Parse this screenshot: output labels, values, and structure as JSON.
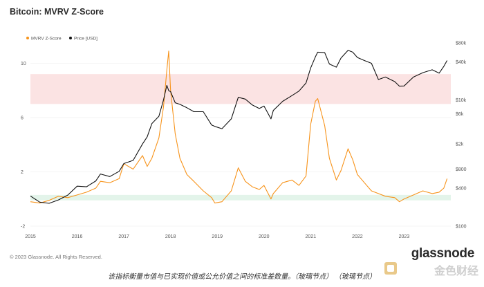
{
  "title": "Bitcoin: MVRV Z-Score",
  "copyright": "© 2023 Glassnode. All Rights Reserved.",
  "brand": "glassnode",
  "caption": "该指标衡量市值与已实现价值或公允价值之间的标准差数量。（玻璃节点） （玻璃节点）",
  "watermark_text": "金色财经",
  "colors": {
    "zscore": "#f7931a",
    "price": "#111111",
    "red_band": "#fbe3e3",
    "green_band": "#e3f4ea"
  },
  "chart_data": {
    "type": "line",
    "title": "Bitcoin: MVRV Z-Score",
    "legend": [
      "MVRV Z-Score",
      "Price [USD]"
    ],
    "legend_position": "top-left",
    "x_ticks": [
      "2015",
      "2016",
      "2017",
      "2018",
      "2019",
      "2020",
      "2021",
      "2022",
      "2023"
    ],
    "y_left_ticks": [
      "10",
      "6",
      "2",
      "-2"
    ],
    "y_left_range": [
      -2,
      11.5
    ],
    "y_right_ticks": [
      "$80k",
      "$40k",
      "$10k",
      "$6k",
      "$2k",
      "$800",
      "$400",
      "$100"
    ],
    "y_right_scale": "log",
    "y_right_range": [
      100,
      80000
    ],
    "bands": [
      {
        "name": "overvalued",
        "y_from": 7,
        "y_to": 9.2
      },
      {
        "name": "undervalued",
        "y_from": -0.1,
        "y_to": 0.3
      }
    ],
    "series": [
      {
        "name": "MVRV Z-Score",
        "axis": "left",
        "x": [
          2015.0,
          2015.2,
          2015.4,
          2015.6,
          2015.8,
          2016.0,
          2016.2,
          2016.4,
          2016.5,
          2016.7,
          2016.9,
          2017.0,
          2017.2,
          2017.4,
          2017.5,
          2017.6,
          2017.75,
          2017.85,
          2017.92,
          2017.96,
          2018.0,
          2018.1,
          2018.2,
          2018.35,
          2018.5,
          2018.7,
          2018.88,
          2018.95,
          2019.1,
          2019.3,
          2019.45,
          2019.6,
          2019.75,
          2019.9,
          2020.0,
          2020.15,
          2020.2,
          2020.4,
          2020.6,
          2020.75,
          2020.9,
          2021.0,
          2021.1,
          2021.15,
          2021.3,
          2021.4,
          2021.55,
          2021.65,
          2021.8,
          2021.9,
          2022.0,
          2022.15,
          2022.3,
          2022.45,
          2022.6,
          2022.8,
          2022.9,
          2023.0,
          2023.2,
          2023.4,
          2023.6,
          2023.75,
          2023.85,
          2023.92
        ],
        "y": [
          -0.2,
          -0.3,
          -0.1,
          0.2,
          0.1,
          0.3,
          0.5,
          0.8,
          1.3,
          1.2,
          1.5,
          2.6,
          2.2,
          3.2,
          2.4,
          3.0,
          4.5,
          6.8,
          9.5,
          10.9,
          8.0,
          4.8,
          3.0,
          1.8,
          1.3,
          0.6,
          0.1,
          -0.3,
          -0.2,
          0.6,
          2.3,
          1.3,
          0.9,
          0.7,
          1.0,
          0.0,
          0.4,
          1.2,
          1.4,
          1.0,
          1.7,
          5.5,
          7.2,
          7.4,
          5.4,
          3.0,
          1.4,
          2.1,
          3.7,
          2.9,
          1.8,
          1.2,
          0.6,
          0.4,
          0.2,
          0.1,
          -0.2,
          0.0,
          0.3,
          0.6,
          0.4,
          0.5,
          0.8,
          1.5
        ]
      },
      {
        "name": "Price [USD]",
        "axis": "right",
        "x": [
          2015.0,
          2015.2,
          2015.4,
          2015.6,
          2015.8,
          2016.0,
          2016.2,
          2016.4,
          2016.5,
          2016.7,
          2016.9,
          2017.0,
          2017.2,
          2017.4,
          2017.5,
          2017.6,
          2017.75,
          2017.85,
          2017.92,
          2017.96,
          2018.0,
          2018.1,
          2018.2,
          2018.35,
          2018.5,
          2018.7,
          2018.88,
          2018.95,
          2019.1,
          2019.3,
          2019.45,
          2019.6,
          2019.75,
          2019.9,
          2020.0,
          2020.15,
          2020.2,
          2020.4,
          2020.6,
          2020.75,
          2020.9,
          2021.0,
          2021.1,
          2021.15,
          2021.3,
          2021.4,
          2021.55,
          2021.65,
          2021.8,
          2021.9,
          2022.0,
          2022.15,
          2022.3,
          2022.45,
          2022.6,
          2022.8,
          2022.9,
          2023.0,
          2023.2,
          2023.4,
          2023.6,
          2023.75,
          2023.85,
          2023.92
        ],
        "y": [
          300,
          240,
          230,
          260,
          310,
          430,
          420,
          520,
          670,
          610,
          740,
          980,
          1100,
          2000,
          2600,
          4200,
          5500,
          10000,
          17000,
          14000,
          13500,
          9000,
          8500,
          7500,
          6500,
          6500,
          4000,
          3800,
          3500,
          5000,
          11000,
          10300,
          8300,
          7300,
          8000,
          5000,
          6800,
          9500,
          11700,
          13800,
          18500,
          32000,
          48000,
          57000,
          56000,
          37000,
          33000,
          46000,
          61000,
          57000,
          47000,
          42000,
          38000,
          21000,
          23000,
          19500,
          16500,
          16600,
          23000,
          27000,
          30000,
          26500,
          34000,
          42000
        ]
      }
    ]
  }
}
